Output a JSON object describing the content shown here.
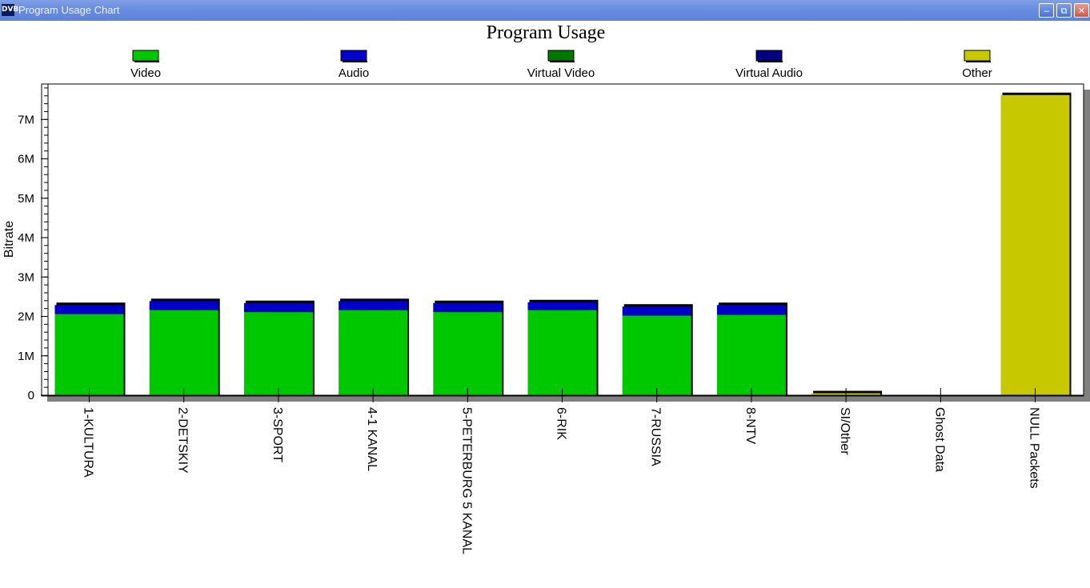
{
  "window": {
    "title": "Program Usage Chart",
    "icon_text": "DVB"
  },
  "chart_data": {
    "type": "bar",
    "stacked": true,
    "title": "Program Usage",
    "ylabel": "Bitrate",
    "xlabel": "",
    "ylim": [
      0,
      7900000
    ],
    "yticks": [
      {
        "value": 0,
        "label": "0"
      },
      {
        "value": 1000000,
        "label": "1M"
      },
      {
        "value": 2000000,
        "label": "2M"
      },
      {
        "value": 3000000,
        "label": "3M"
      },
      {
        "value": 4000000,
        "label": "4M"
      },
      {
        "value": 5000000,
        "label": "5M"
      },
      {
        "value": 6000000,
        "label": "6M"
      },
      {
        "value": 7000000,
        "label": "7M"
      }
    ],
    "legend_position": "top",
    "categories": [
      "1-KULTURA",
      "2-DETSKIY",
      "3-SPORT",
      "4-1 KANAL",
      "5-PETERBURG 5 KANAL",
      "6-RIK",
      "7-RUSSIA",
      "8-NTV",
      "SI/Other",
      "Ghost Data",
      "NULL Packets"
    ],
    "series": [
      {
        "name": "Video",
        "color": "#00c800",
        "values": [
          2060000,
          2160000,
          2110000,
          2160000,
          2110000,
          2160000,
          2020000,
          2040000,
          0,
          0,
          0
        ]
      },
      {
        "name": "Audio",
        "color": "#0000c8",
        "values": [
          230000,
          230000,
          230000,
          230000,
          230000,
          200000,
          230000,
          250000,
          0,
          0,
          0
        ]
      },
      {
        "name": "Virtual Video",
        "color": "#007800",
        "values": [
          0,
          0,
          0,
          0,
          0,
          0,
          0,
          0,
          0,
          0,
          0
        ]
      },
      {
        "name": "Virtual Audio",
        "color": "#000080",
        "values": [
          0,
          0,
          0,
          0,
          0,
          0,
          0,
          0,
          0,
          0,
          0
        ]
      },
      {
        "name": "Other",
        "color": "#c8c800",
        "values": [
          0,
          0,
          0,
          0,
          0,
          0,
          0,
          0,
          50000,
          0,
          7620000
        ]
      }
    ]
  }
}
